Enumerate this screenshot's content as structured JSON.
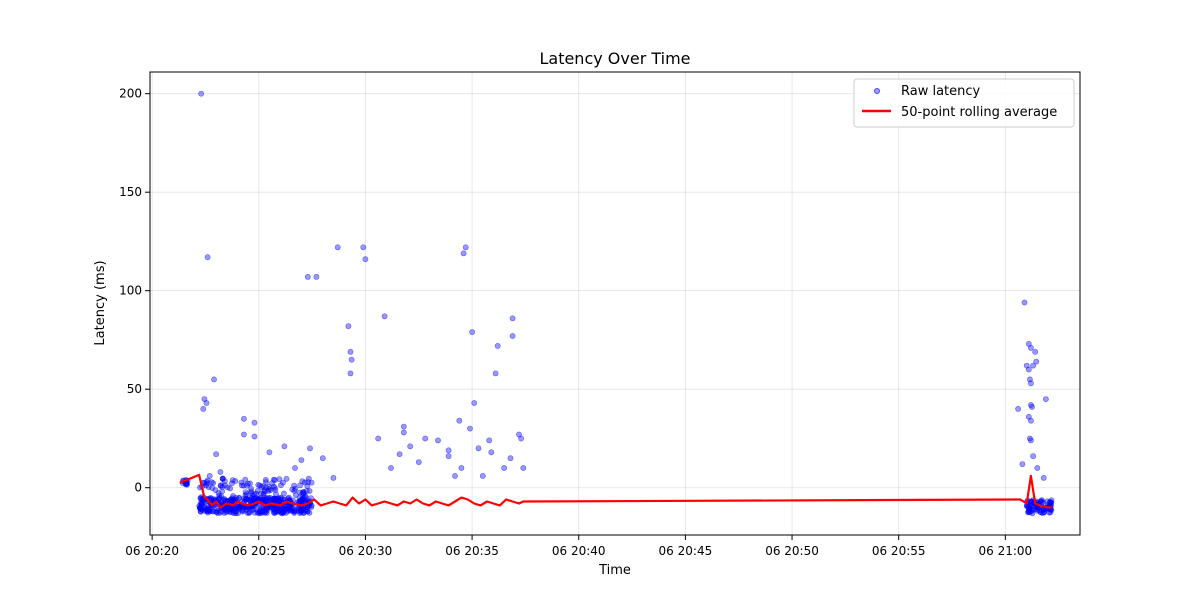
{
  "chart_data": {
    "type": "scatter",
    "title": "Latency Over Time",
    "xlabel": "Time",
    "ylabel": "Latency (ms)",
    "x_ticks": [
      "06 20:20",
      "06 20:25",
      "06 20:30",
      "06 20:35",
      "06 20:40",
      "06 20:45",
      "06 20:50",
      "06 20:55",
      "06 21:00"
    ],
    "x_tick_minutes": [
      0,
      5,
      10,
      15,
      20,
      25,
      30,
      35,
      40
    ],
    "xlim_minutes": [
      -0.1,
      43.5
    ],
    "y_ticks": [
      0,
      50,
      100,
      150,
      200
    ],
    "ylim": [
      -24,
      211
    ],
    "grid": true,
    "legend_position": "top-right",
    "colors": {
      "raw": "#0000ff",
      "rolling": "#ff0000"
    },
    "series": [
      {
        "name": "Raw latency",
        "kind": "scatter",
        "clusters": [
          {
            "x_range": [
              1.4,
              1.7
            ],
            "y_range": [
              1,
              4
            ],
            "count": 12
          },
          {
            "x_range": [
              2.2,
              7.5
            ],
            "y_range": [
              -13,
              -5
            ],
            "count": 380
          },
          {
            "x_range": [
              2.2,
              7.5
            ],
            "y_range": [
              -6,
              5
            ],
            "count": 110
          },
          {
            "x_range": [
              41.0,
              42.2
            ],
            "y_range": [
              -13,
              -6
            ],
            "count": 80
          }
        ],
        "outliers": [
          {
            "x": 2.3,
            "y": 200
          },
          {
            "x": 2.6,
            "y": 117
          },
          {
            "x": 2.45,
            "y": 45
          },
          {
            "x": 2.55,
            "y": 43
          },
          {
            "x": 2.4,
            "y": 40
          },
          {
            "x": 2.9,
            "y": 55
          },
          {
            "x": 3.0,
            "y": 17
          },
          {
            "x": 2.7,
            "y": 6
          },
          {
            "x": 3.2,
            "y": 8
          },
          {
            "x": 4.3,
            "y": 35
          },
          {
            "x": 4.3,
            "y": 27
          },
          {
            "x": 4.8,
            "y": 33
          },
          {
            "x": 4.8,
            "y": 26
          },
          {
            "x": 5.5,
            "y": 18
          },
          {
            "x": 6.2,
            "y": 21
          },
          {
            "x": 6.7,
            "y": 10
          },
          {
            "x": 7.0,
            "y": 14
          },
          {
            "x": 7.3,
            "y": 107
          },
          {
            "x": 7.7,
            "y": 107
          },
          {
            "x": 7.4,
            "y": 20
          },
          {
            "x": 8.0,
            "y": 15
          },
          {
            "x": 8.7,
            "y": 122
          },
          {
            "x": 8.5,
            "y": 5
          },
          {
            "x": 9.2,
            "y": 82
          },
          {
            "x": 9.3,
            "y": 69
          },
          {
            "x": 9.35,
            "y": 65
          },
          {
            "x": 9.3,
            "y": 58
          },
          {
            "x": 9.9,
            "y": 122
          },
          {
            "x": 10.0,
            "y": 116
          },
          {
            "x": 10.6,
            "y": 25
          },
          {
            "x": 10.9,
            "y": 87
          },
          {
            "x": 11.2,
            "y": 10
          },
          {
            "x": 11.6,
            "y": 17
          },
          {
            "x": 11.8,
            "y": 31
          },
          {
            "x": 11.8,
            "y": 28
          },
          {
            "x": 12.1,
            "y": 21
          },
          {
            "x": 12.5,
            "y": 13
          },
          {
            "x": 12.8,
            "y": 25
          },
          {
            "x": 13.4,
            "y": 24
          },
          {
            "x": 13.9,
            "y": 19
          },
          {
            "x": 13.9,
            "y": 16
          },
          {
            "x": 14.2,
            "y": 6
          },
          {
            "x": 14.4,
            "y": 34
          },
          {
            "x": 14.5,
            "y": 10
          },
          {
            "x": 14.6,
            "y": 119
          },
          {
            "x": 14.7,
            "y": 122
          },
          {
            "x": 14.9,
            "y": 30
          },
          {
            "x": 15.0,
            "y": 79
          },
          {
            "x": 15.1,
            "y": 43
          },
          {
            "x": 15.3,
            "y": 20
          },
          {
            "x": 15.5,
            "y": 6
          },
          {
            "x": 15.8,
            "y": 24
          },
          {
            "x": 15.9,
            "y": 18
          },
          {
            "x": 16.2,
            "y": 72
          },
          {
            "x": 16.1,
            "y": 58
          },
          {
            "x": 16.5,
            "y": 10
          },
          {
            "x": 16.8,
            "y": 15
          },
          {
            "x": 16.9,
            "y": 86
          },
          {
            "x": 16.9,
            "y": 77
          },
          {
            "x": 17.2,
            "y": 27
          },
          {
            "x": 17.3,
            "y": 25
          },
          {
            "x": 17.4,
            "y": 10
          },
          {
            "x": 40.6,
            "y": 40
          },
          {
            "x": 40.8,
            "y": 12
          },
          {
            "x": 40.9,
            "y": 94
          },
          {
            "x": 41.1,
            "y": 73
          },
          {
            "x": 41.2,
            "y": 71
          },
          {
            "x": 41.0,
            "y": 62
          },
          {
            "x": 41.1,
            "y": 60
          },
          {
            "x": 41.15,
            "y": 55
          },
          {
            "x": 41.2,
            "y": 53
          },
          {
            "x": 41.2,
            "y": 42
          },
          {
            "x": 41.25,
            "y": 41
          },
          {
            "x": 41.1,
            "y": 36
          },
          {
            "x": 41.2,
            "y": 34
          },
          {
            "x": 41.15,
            "y": 25
          },
          {
            "x": 41.2,
            "y": 24
          },
          {
            "x": 41.3,
            "y": 16
          },
          {
            "x": 41.4,
            "y": 69
          },
          {
            "x": 41.45,
            "y": 64
          },
          {
            "x": 41.3,
            "y": 62
          },
          {
            "x": 41.5,
            "y": 10
          },
          {
            "x": 41.9,
            "y": 45
          },
          {
            "x": 41.8,
            "y": 5
          }
        ]
      },
      {
        "name": "50-point rolling average",
        "kind": "line",
        "points": [
          [
            1.3,
            2.5
          ],
          [
            2.2,
            6.5
          ],
          [
            2.45,
            -5
          ],
          [
            2.6,
            -6
          ],
          [
            2.8,
            -9
          ],
          [
            3.0,
            -7
          ],
          [
            3.2,
            -10
          ],
          [
            3.5,
            -8
          ],
          [
            3.8,
            -9
          ],
          [
            4.0,
            -7
          ],
          [
            4.2,
            -8
          ],
          [
            4.5,
            -9
          ],
          [
            4.8,
            -8
          ],
          [
            5.0,
            -7
          ],
          [
            5.3,
            -9
          ],
          [
            5.6,
            -8
          ],
          [
            6.0,
            -9
          ],
          [
            6.3,
            -7
          ],
          [
            6.6,
            -8
          ],
          [
            7.0,
            -9
          ],
          [
            7.3,
            -8
          ],
          [
            7.6,
            -6
          ],
          [
            7.9,
            -9
          ],
          [
            8.2,
            -8
          ],
          [
            8.5,
            -7
          ],
          [
            8.8,
            -8
          ],
          [
            9.1,
            -9
          ],
          [
            9.4,
            -5
          ],
          [
            9.7,
            -8
          ],
          [
            10.0,
            -6
          ],
          [
            10.3,
            -9
          ],
          [
            10.6,
            -8
          ],
          [
            10.9,
            -7
          ],
          [
            11.2,
            -8
          ],
          [
            11.5,
            -9
          ],
          [
            11.8,
            -7
          ],
          [
            12.1,
            -8
          ],
          [
            12.4,
            -6
          ],
          [
            12.7,
            -8
          ],
          [
            13.0,
            -9
          ],
          [
            13.3,
            -7
          ],
          [
            13.6,
            -8
          ],
          [
            13.9,
            -9
          ],
          [
            14.2,
            -7
          ],
          [
            14.5,
            -5
          ],
          [
            14.8,
            -6
          ],
          [
            15.1,
            -8
          ],
          [
            15.4,
            -9
          ],
          [
            15.7,
            -7
          ],
          [
            16.0,
            -8
          ],
          [
            16.3,
            -9
          ],
          [
            16.6,
            -6
          ],
          [
            16.9,
            -7
          ],
          [
            17.2,
            -8
          ],
          [
            17.4,
            -7
          ],
          [
            40.7,
            -6
          ],
          [
            41.0,
            -8
          ],
          [
            41.2,
            6
          ],
          [
            41.4,
            -8
          ],
          [
            41.6,
            -9
          ],
          [
            42.0,
            -10
          ],
          [
            42.2,
            -10
          ]
        ]
      }
    ]
  }
}
